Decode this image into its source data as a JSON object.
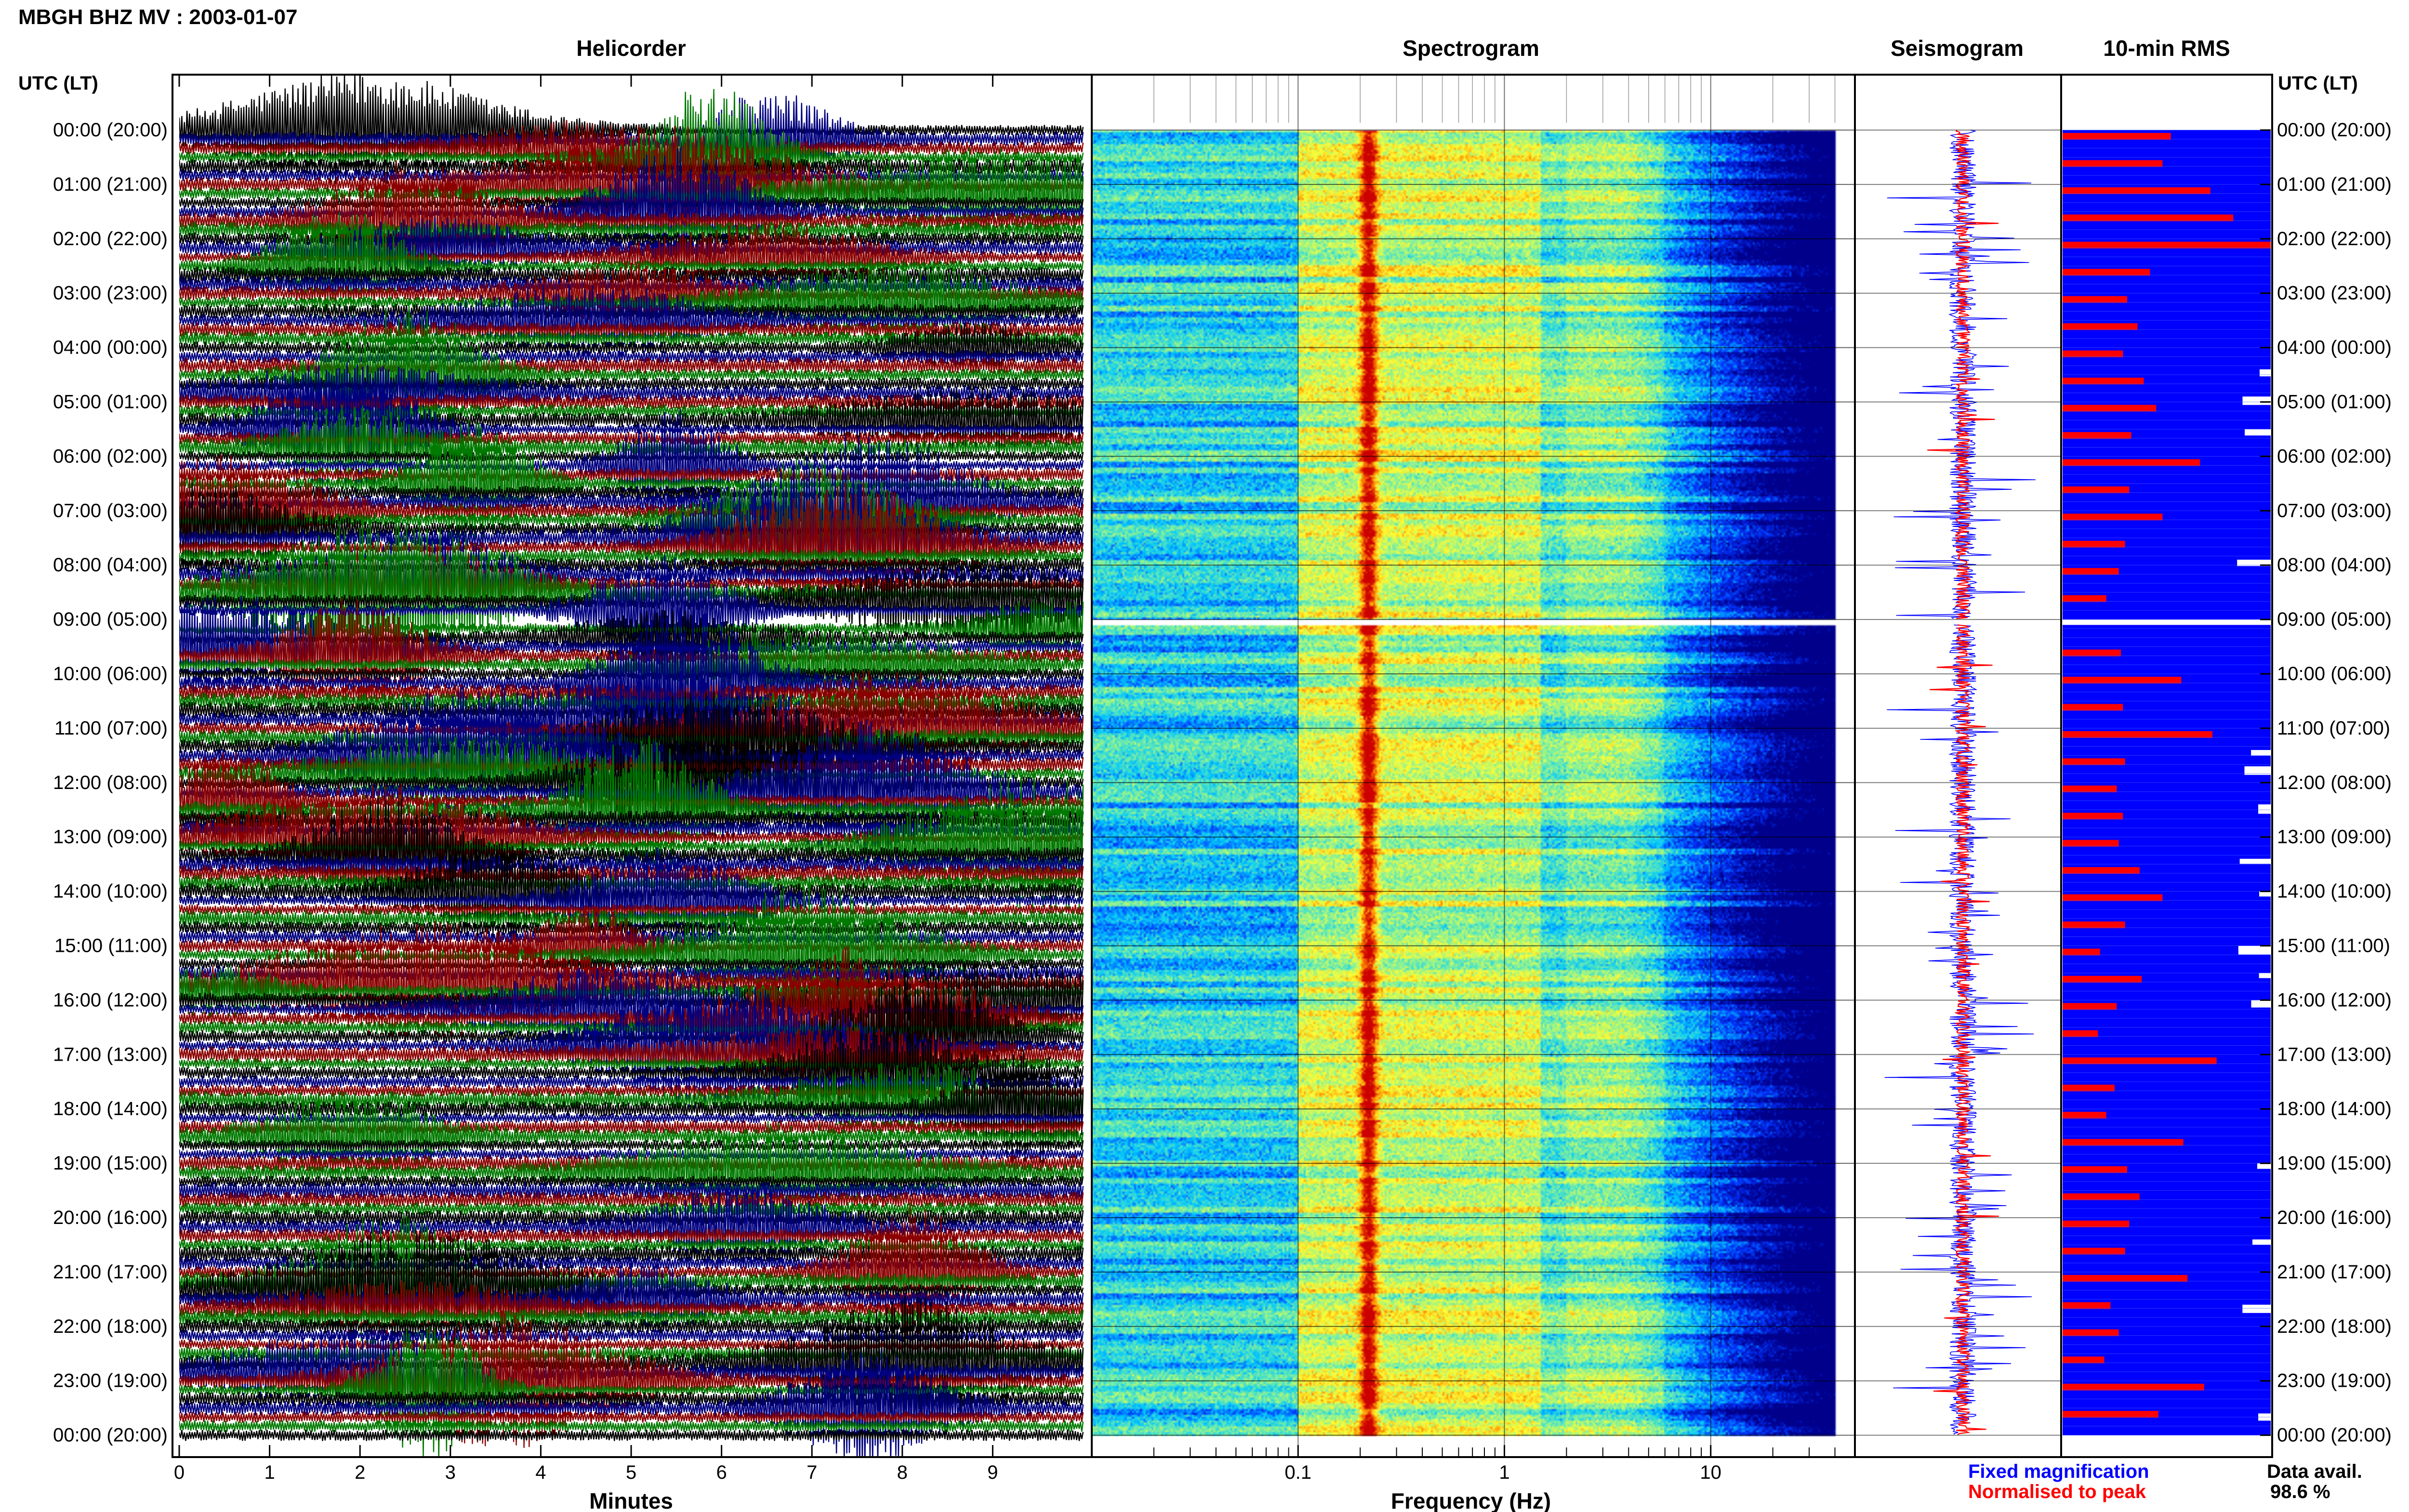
{
  "header": {
    "title": "MBGH BHZ MV : 2003-01-07",
    "time_axis_label": "UTC (LT)",
    "panels": {
      "helicorder": "Helicorder",
      "spectrogram": "Spectrogram",
      "seismogram": "Seismogram",
      "rms": "10-min RMS"
    }
  },
  "colors": {
    "trace_cycle": [
      "#000000",
      "#000080",
      "#8b0000",
      "#007a00"
    ],
    "fixed_magnification": "#0000ff",
    "normalised_to_peak": "#ff0000",
    "rms_background": "#0000ff",
    "rms_bar": "#ff0000",
    "spectrogram_colormap": [
      "#00008b",
      "#0033ff",
      "#00c8ff",
      "#7ff0a0",
      "#ffff33",
      "#ff8c00",
      "#cc0000"
    ]
  },
  "legend": {
    "fixed_magnification": "Fixed magnification",
    "normalised_to_peak": "Normalised to peak",
    "data_avail_label": "Data avail.",
    "data_avail_value": "98.6 %"
  },
  "chart_data": [
    {
      "type": "line",
      "panel": "helicorder",
      "title": "Helicorder",
      "xlabel": "Minutes",
      "x_ticks": [
        "0",
        "1",
        "2",
        "3",
        "4",
        "5",
        "6",
        "7",
        "8",
        "9"
      ],
      "xlim": [
        0,
        10
      ],
      "rows": 145,
      "rows_per_hour": 6,
      "series_color_cycle": [
        "black",
        "navy",
        "darkred",
        "green"
      ],
      "y_tick_labels": [
        "00:00 (20:00)",
        "01:00 (21:00)",
        "02:00 (22:00)",
        "03:00 (23:00)",
        "04:00 (00:00)",
        "05:00 (01:00)",
        "06:00 (02:00)",
        "07:00 (03:00)",
        "08:00 (04:00)",
        "09:00 (05:00)",
        "10:00 (06:00)",
        "11:00 (07:00)",
        "12:00 (08:00)",
        "13:00 (09:00)",
        "14:00 (10:00)",
        "15:00 (11:00)",
        "16:00 (12:00)",
        "17:00 (13:00)",
        "18:00 (14:00)",
        "19:00 (15:00)",
        "20:00 (16:00)",
        "21:00 (17:00)",
        "22:00 (18:00)",
        "23:00 (19:00)",
        "00:00 (20:00)"
      ],
      "events_minutes": [
        2.6,
        5.6,
        7.6,
        1.6,
        6.4,
        3.8,
        4.6,
        8.2,
        0.4,
        9.3,
        5.1,
        2.1,
        6.9
      ],
      "data_gap_hours": [
        9.0,
        9.1
      ]
    },
    {
      "type": "heatmap",
      "panel": "spectrogram",
      "title": "Spectrogram",
      "xlabel": "Frequency (Hz)",
      "x_scale": "log",
      "xlim": [
        0.01,
        50
      ],
      "x_ticks": [
        "0.1",
        "1",
        "10"
      ],
      "dominant_frequency_hz": 0.22,
      "upper_cutoff_hz": 40,
      "data_gap_hours": [
        9.0,
        9.1
      ]
    },
    {
      "type": "line",
      "panel": "seismogram",
      "title": "Seismogram",
      "series": [
        {
          "name": "Fixed magnification",
          "color": "#0000ff"
        },
        {
          "name": "Normalised to peak",
          "color": "#ff0000"
        }
      ],
      "data_gap_hours": [
        9.0,
        9.1
      ]
    },
    {
      "type": "bar",
      "panel": "rms",
      "title": "10-min RMS",
      "orientation": "horizontal",
      "xlim": [
        0,
        1
      ],
      "hours": [
        0.0,
        0.5,
        1.0,
        1.5,
        2.0,
        2.5,
        3.0,
        3.5,
        4.0,
        4.5,
        5.0,
        5.5,
        6.0,
        6.5,
        7.0,
        7.5,
        8.0,
        8.5,
        9.5,
        10.0,
        10.5,
        11.0,
        11.5,
        12.0,
        12.5,
        13.0,
        13.5,
        14.0,
        14.5,
        15.0,
        15.5,
        16.0,
        16.5,
        17.0,
        17.5,
        18.0,
        18.5,
        19.0,
        19.5,
        20.0,
        20.5,
        21.0,
        21.5,
        22.0,
        22.5,
        23.0,
        23.5
      ],
      "values": [
        0.52,
        0.48,
        0.71,
        0.82,
        1.0,
        0.42,
        0.31,
        0.36,
        0.29,
        0.39,
        0.45,
        0.33,
        0.66,
        0.32,
        0.48,
        0.3,
        0.27,
        0.21,
        0.28,
        0.57,
        0.29,
        0.72,
        0.3,
        0.26,
        0.29,
        0.27,
        0.37,
        0.48,
        0.3,
        0.18,
        0.38,
        0.26,
        0.17,
        0.74,
        0.25,
        0.21,
        0.58,
        0.31,
        0.37,
        0.32,
        0.3,
        0.6,
        0.23,
        0.27,
        0.2,
        0.68,
        0.46
      ],
      "data_avail_gaps_hours": [
        4.4,
        4.9,
        5.5,
        7.9,
        11.4,
        11.7,
        12.4,
        13.4,
        14.0,
        15.0,
        15.5,
        16.0,
        19.0,
        20.4,
        21.6,
        23.6
      ]
    }
  ]
}
